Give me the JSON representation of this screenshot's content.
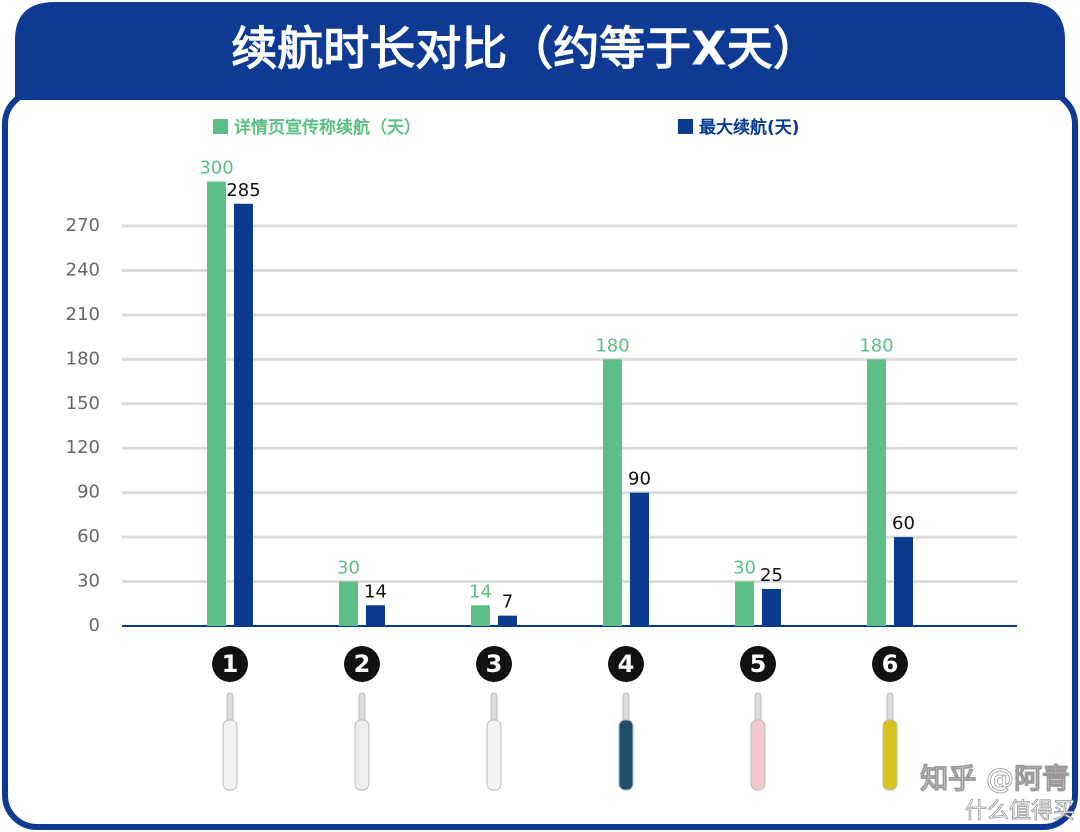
{
  "chart_data": {
    "type": "bar",
    "title": "续航时长对比（约等于X天）",
    "categories": [
      "1",
      "2",
      "3",
      "4",
      "5",
      "6"
    ],
    "series": [
      {
        "name": "详情页宣传称续航（天）",
        "color": "#5dbf87",
        "values": [
          300,
          30,
          14,
          180,
          30,
          180
        ]
      },
      {
        "name": "最大续航(天)",
        "color": "#0b3b8f",
        "values": [
          285,
          14,
          7,
          90,
          25,
          60
        ]
      }
    ],
    "ylim": [
      0,
      300
    ],
    "yticks": [
      0,
      30,
      60,
      90,
      120,
      150,
      180,
      210,
      240,
      270
    ],
    "grid": true
  },
  "watermark": [
    "知乎 @阿青",
    "什么值得买"
  ]
}
